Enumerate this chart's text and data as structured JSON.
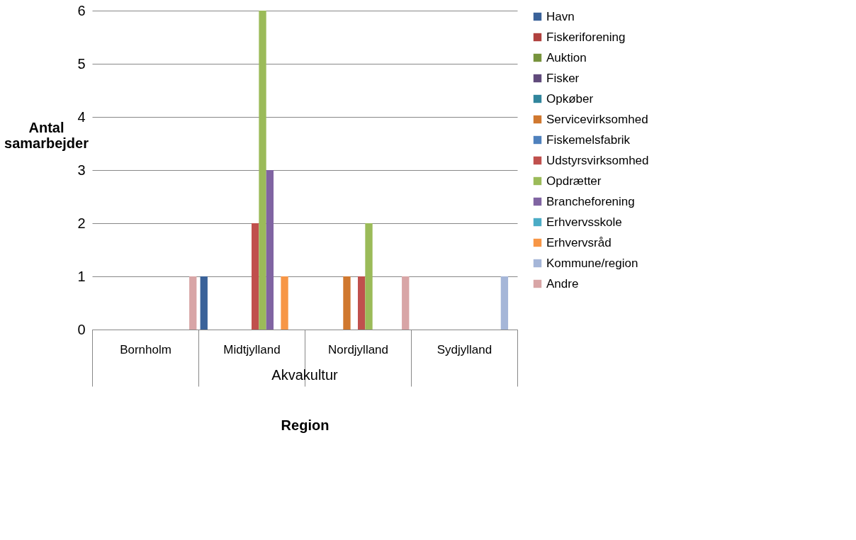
{
  "chart_data": {
    "type": "bar",
    "xlabel": "Region",
    "ylabel": "Antal samarbejder",
    "categories": [
      "Bornholm",
      "Midtjylland",
      "Nordjylland",
      "Sydjylland"
    ],
    "annotations": [
      "Akvakultur"
    ],
    "series": [
      {
        "name": "Havn",
        "color": "#3a6299",
        "values": [
          0,
          1,
          0,
          0
        ]
      },
      {
        "name": "Fiskeriforening",
        "color": "#b0413e",
        "values": [
          0,
          0,
          0,
          0
        ]
      },
      {
        "name": "Auktion",
        "color": "#77933c",
        "values": [
          0,
          0,
          0,
          0
        ]
      },
      {
        "name": "Fisker",
        "color": "#604a7b",
        "values": [
          0,
          0,
          0,
          0
        ]
      },
      {
        "name": "Opkøber",
        "color": "#31859c",
        "values": [
          0,
          0,
          0,
          0
        ]
      },
      {
        "name": "Servicevirksomhed",
        "color": "#d0782f",
        "values": [
          0,
          0,
          1,
          0
        ]
      },
      {
        "name": "Fiskemelsfabrik",
        "color": "#4f81bd",
        "values": [
          0,
          0,
          0,
          0
        ]
      },
      {
        "name": "Udstyrsvirksomhed",
        "color": "#c0504d",
        "values": [
          0,
          2,
          1,
          0
        ]
      },
      {
        "name": "Opdrætter",
        "color": "#9bbb59",
        "values": [
          0,
          6,
          2,
          0
        ]
      },
      {
        "name": "Brancheforening",
        "color": "#8064a2",
        "values": [
          0,
          3,
          0,
          0
        ]
      },
      {
        "name": "Erhvervsskole",
        "color": "#4bacc6",
        "values": [
          0,
          0,
          0,
          0
        ]
      },
      {
        "name": "Erhvervsråd",
        "color": "#f79646",
        "values": [
          0,
          1,
          0,
          0
        ]
      },
      {
        "name": "Kommune/region",
        "color": "#a5b6d8",
        "values": [
          0,
          0,
          0,
          1
        ]
      },
      {
        "name": "Andre",
        "color": "#d8a5a6",
        "values": [
          1,
          0,
          1,
          0
        ]
      }
    ],
    "ylim": [
      0,
      6
    ],
    "yticks": [
      0,
      1,
      2,
      3,
      4,
      5,
      6
    ],
    "grid": "y",
    "legend": "right"
  }
}
